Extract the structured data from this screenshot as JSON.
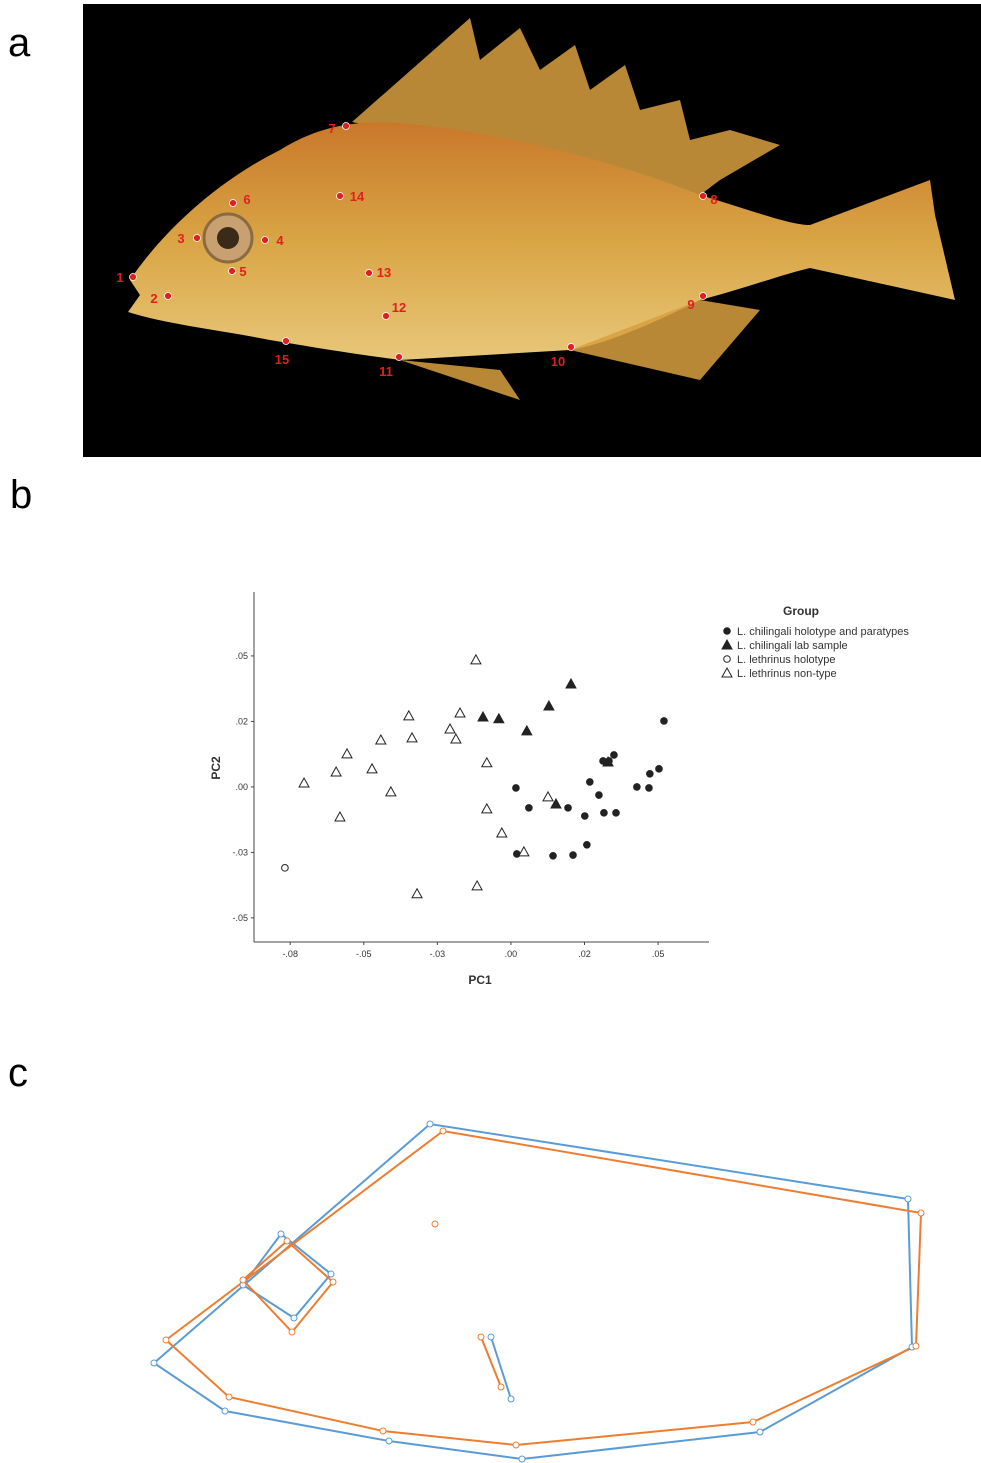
{
  "panel_labels": [
    "a",
    "b",
    "c"
  ],
  "landmarks": [
    "1",
    "2",
    "3",
    "4",
    "5",
    "6",
    "7",
    "8",
    "9",
    "10",
    "11",
    "12",
    "13",
    "14",
    "15"
  ],
  "chart_data": {
    "type": "scatter",
    "x_label": "PC1",
    "y_label": "PC2",
    "legend_title": "Group",
    "xlim": [
      -0.0873,
      0.0673
    ],
    "ylim": [
      -0.0592,
      0.0744
    ],
    "xticks": [
      {
        "value": -0.075,
        "label": "-.08"
      },
      {
        "value": -0.05,
        "label": "-.05"
      },
      {
        "value": -0.025,
        "label": "-.03"
      },
      {
        "value": 0,
        "label": ".00"
      },
      {
        "value": 0.025,
        "label": ".02"
      },
      {
        "value": 0.05,
        "label": ".05"
      }
    ],
    "yticks": [
      {
        "value": -0.05,
        "label": "-.05"
      },
      {
        "value": -0.025,
        "label": "-.03"
      },
      {
        "value": 0,
        "label": ".00"
      },
      {
        "value": 0.025,
        "label": ".02"
      },
      {
        "value": 0.05,
        "label": ".05"
      }
    ],
    "series": [
      {
        "name": "L. chilingali holotype and paratypes",
        "marker": "circle",
        "filled": true,
        "color": "#222222",
        "x": [
          0.052,
          0.0503,
          0.0472,
          0.0469,
          0.0428,
          0.035,
          0.0333,
          0.0313,
          0.0299,
          0.0268,
          0.0251,
          0.0357,
          0.0316,
          0.0194,
          0.0061,
          0.0017,
          0.002,
          0.0143,
          0.0211,
          0.0258
        ],
        "values": [
          0.0252,
          0.0069,
          0.005,
          -0.0004,
          0,
          0.0122,
          0.0099,
          0.0099,
          -0.0031,
          0.0019,
          -0.0111,
          -0.0099,
          -0.0099,
          -0.008,
          -0.008,
          -0.0004,
          -0.0256,
          -0.0263,
          -0.026,
          -0.0221
        ]
      },
      {
        "name": "L. chilingali lab sample",
        "marker": "triangle",
        "filled": true,
        "color": "#222222",
        "x": [
          0.0204,
          0.0129,
          0.0054,
          -0.0041,
          -0.0095,
          0.0153,
          0.033
        ],
        "values": [
          0.0393,
          0.0309,
          0.0214,
          0.026,
          0.0267,
          -0.0065,
          0.0095
        ]
      },
      {
        "name": "L. lethrinus holotype",
        "marker": "circle",
        "filled": false,
        "color": "#222222",
        "x": [
          -0.0768
        ],
        "values": [
          -0.0309
        ]
      },
      {
        "name": "L. lethrinus non-type",
        "marker": "triangle",
        "filled": false,
        "color": "#222222",
        "x": [
          -0.0119,
          -0.0173,
          -0.0207,
          -0.0187,
          -0.0347,
          -0.0336,
          -0.0442,
          -0.0557,
          -0.0594,
          -0.0472,
          -0.0703,
          -0.0408,
          -0.0581,
          -0.0082,
          -0.0082,
          0.0126,
          -0.0031,
          0.0044,
          -0.0115,
          -0.0319
        ],
        "values": [
          0.0485,
          0.0282,
          0.0221,
          0.0183,
          0.0271,
          0.0187,
          0.0179,
          0.0126,
          0.0057,
          0.0069,
          0.0015,
          -0.0019,
          -0.0115,
          0.0092,
          -0.0084,
          -0.0038,
          -0.0176,
          -0.0248,
          -0.0378,
          -0.0408
        ]
      }
    ]
  }
}
